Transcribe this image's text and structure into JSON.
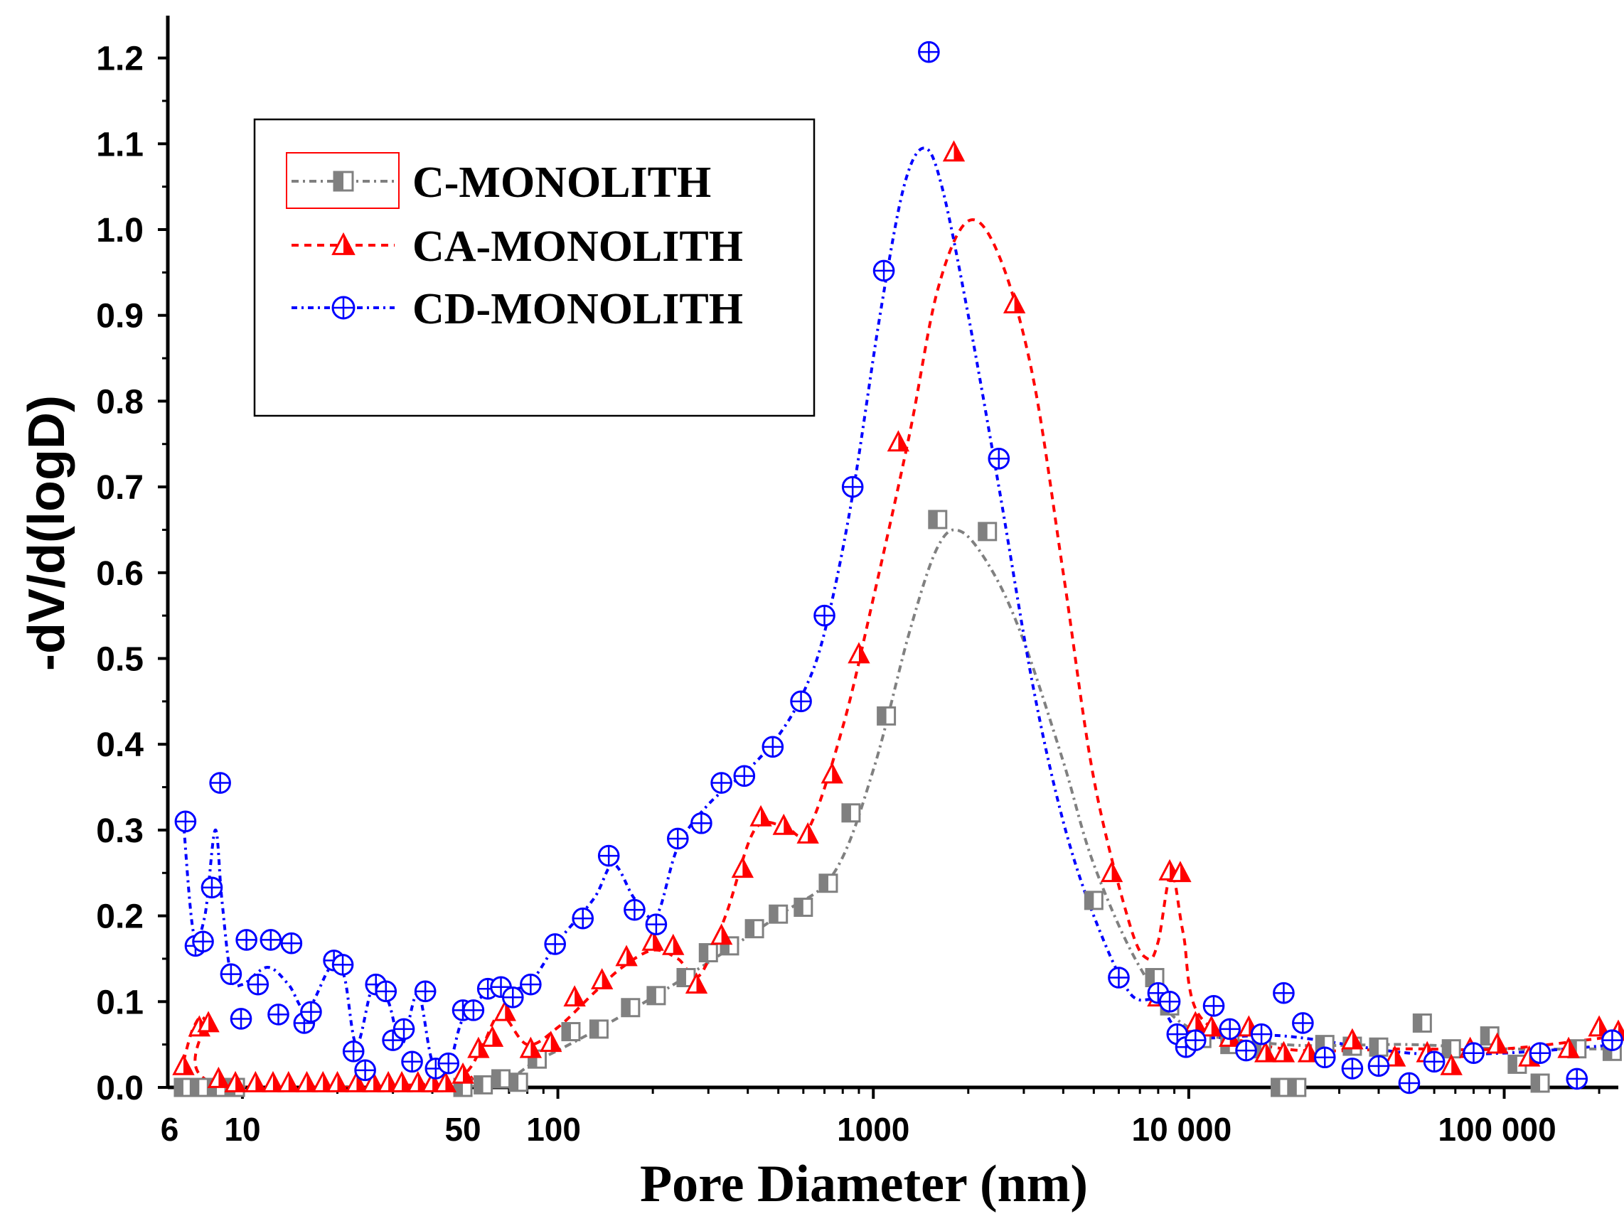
{
  "chart_data": {
    "type": "scatter",
    "title": "",
    "xlabel": "Pore Diameter (nm)",
    "ylabel": "-dV/d(logD)",
    "xscale": "log",
    "xlim": [
      5.8,
      230000
    ],
    "ylim": [
      0,
      1.25
    ],
    "yticks": [
      "0.0",
      "0.1",
      "0.2",
      "0.3",
      "0.4",
      "0.5",
      "0.6",
      "0.7",
      "0.8",
      "0.9",
      "1.0",
      "1.1",
      "1.2"
    ],
    "xticks": [
      {
        "value": 6,
        "label": "6"
      },
      {
        "value": 10,
        "label": "10"
      },
      {
        "value": 50,
        "label": "50"
      },
      {
        "value": 100,
        "label": "100"
      },
      {
        "value": 1000,
        "label": "1000"
      },
      {
        "value": 10000,
        "label": "10 000"
      },
      {
        "value": 100000,
        "label": "100 000"
      }
    ],
    "legend": {
      "position": "top-left",
      "entries": [
        "C-MONOLITH",
        "CA-MONOLITH",
        "CD-MONOLITH"
      ]
    },
    "series": [
      {
        "name": "C-MONOLITH",
        "color": "#808080",
        "marker": "half-square",
        "points": [
          [
            6.5,
            0.0
          ],
          [
            7.3,
            0.0
          ],
          [
            8.3,
            0.0
          ],
          [
            9.5,
            0.0
          ],
          [
            50,
            0.0
          ],
          [
            58,
            0.003
          ],
          [
            66,
            0.01
          ],
          [
            75,
            0.006
          ],
          [
            86,
            0.033
          ],
          [
            110,
            0.065
          ],
          [
            135,
            0.068
          ],
          [
            170,
            0.093
          ],
          [
            205,
            0.107
          ],
          [
            255,
            0.128
          ],
          [
            300,
            0.157
          ],
          [
            350,
            0.165
          ],
          [
            420,
            0.185
          ],
          [
            500,
            0.202
          ],
          [
            600,
            0.21
          ],
          [
            720,
            0.238
          ],
          [
            850,
            0.32
          ],
          [
            1100,
            0.433
          ],
          [
            1600,
            0.662
          ],
          [
            2300,
            0.648
          ],
          [
            5000,
            0.218
          ],
          [
            7800,
            0.128
          ],
          [
            8700,
            0.095
          ],
          [
            11000,
            0.057
          ],
          [
            13500,
            0.05
          ],
          [
            17000,
            0.045
          ],
          [
            19500,
            0.0
          ],
          [
            22000,
            0.0
          ],
          [
            27000,
            0.05
          ],
          [
            33000,
            0.048
          ],
          [
            40000,
            0.047
          ],
          [
            55000,
            0.075
          ],
          [
            68000,
            0.045
          ],
          [
            90000,
            0.06
          ],
          [
            110000,
            0.027
          ],
          [
            130000,
            0.005
          ],
          [
            170000,
            0.045
          ],
          [
            220000,
            0.042
          ]
        ],
        "curve": [
          [
            6.5,
            0.0
          ],
          [
            50,
            0.0
          ],
          [
            90,
            0.035
          ],
          [
            200,
            0.105
          ],
          [
            500,
            0.2
          ],
          [
            750,
            0.25
          ],
          [
            1000,
            0.37
          ],
          [
            1300,
            0.53
          ],
          [
            1600,
            0.63
          ],
          [
            1900,
            0.648
          ],
          [
            2400,
            0.6
          ],
          [
            3000,
            0.52
          ],
          [
            4000,
            0.38
          ],
          [
            5000,
            0.26
          ],
          [
            7000,
            0.14
          ],
          [
            10000,
            0.07
          ],
          [
            20000,
            0.05
          ],
          [
            50000,
            0.05
          ],
          [
            100000,
            0.045
          ],
          [
            230000,
            0.045
          ]
        ]
      },
      {
        "name": "CA-MONOLITH",
        "color": "#ff0000",
        "marker": "half-triangle",
        "points": [
          [
            6.5,
            0.025
          ],
          [
            7.3,
            0.07
          ],
          [
            7.8,
            0.075
          ],
          [
            8.4,
            0.01
          ],
          [
            9.5,
            0.005
          ],
          [
            11,
            0.005
          ],
          [
            12.5,
            0.005
          ],
          [
            14,
            0.005
          ],
          [
            16,
            0.005
          ],
          [
            18,
            0.005
          ],
          [
            20,
            0.005
          ],
          [
            23,
            0.005
          ],
          [
            26,
            0.005
          ],
          [
            29,
            0.005
          ],
          [
            32,
            0.005
          ],
          [
            36,
            0.005
          ],
          [
            40,
            0.005
          ],
          [
            44,
            0.005
          ],
          [
            50,
            0.015
          ],
          [
            56,
            0.045
          ],
          [
            62,
            0.058
          ],
          [
            68,
            0.088
          ],
          [
            82,
            0.045
          ],
          [
            95,
            0.052
          ],
          [
            113,
            0.105
          ],
          [
            138,
            0.125
          ],
          [
            165,
            0.152
          ],
          [
            200,
            0.17
          ],
          [
            232,
            0.165
          ],
          [
            275,
            0.12
          ],
          [
            330,
            0.177
          ],
          [
            385,
            0.255
          ],
          [
            440,
            0.315
          ],
          [
            520,
            0.305
          ],
          [
            620,
            0.295
          ],
          [
            740,
            0.365
          ],
          [
            900,
            0.505
          ],
          [
            1200,
            0.752
          ],
          [
            1800,
            1.09
          ],
          [
            2800,
            0.913
          ],
          [
            5700,
            0.25
          ],
          [
            8000,
            0.105
          ],
          [
            8700,
            0.252
          ],
          [
            9400,
            0.25
          ],
          [
            10500,
            0.075
          ],
          [
            11800,
            0.07
          ],
          [
            13500,
            0.058
          ],
          [
            15500,
            0.07
          ],
          [
            17500,
            0.04
          ],
          [
            20000,
            0.04
          ],
          [
            24000,
            0.04
          ],
          [
            33000,
            0.055
          ],
          [
            45000,
            0.035
          ],
          [
            57000,
            0.04
          ],
          [
            68000,
            0.025
          ],
          [
            78000,
            0.045
          ],
          [
            95000,
            0.05
          ],
          [
            120000,
            0.035
          ],
          [
            160000,
            0.045
          ],
          [
            200000,
            0.07
          ],
          [
            230000,
            0.065
          ]
        ],
        "curve": [
          [
            6.5,
            0.03
          ],
          [
            7.0,
            0.07
          ],
          [
            7.6,
            0.078
          ],
          [
            8.2,
            0.005
          ],
          [
            45,
            0.005
          ],
          [
            52,
            0.02
          ],
          [
            58,
            0.05
          ],
          [
            66,
            0.085
          ],
          [
            80,
            0.05
          ],
          [
            100,
            0.07
          ],
          [
            130,
            0.11
          ],
          [
            160,
            0.14
          ],
          [
            200,
            0.16
          ],
          [
            240,
            0.15
          ],
          [
            280,
            0.13
          ],
          [
            340,
            0.2
          ],
          [
            420,
            0.3
          ],
          [
            520,
            0.305
          ],
          [
            620,
            0.3
          ],
          [
            800,
            0.42
          ],
          [
            1000,
            0.57
          ],
          [
            1300,
            0.76
          ],
          [
            1600,
            0.93
          ],
          [
            2000,
            1.01
          ],
          [
            2500,
            0.97
          ],
          [
            3200,
            0.83
          ],
          [
            4000,
            0.6
          ],
          [
            5000,
            0.36
          ],
          [
            6500,
            0.19
          ],
          [
            7400,
            0.15
          ],
          [
            8000,
            0.17
          ],
          [
            8800,
            0.25
          ],
          [
            9600,
            0.18
          ],
          [
            11000,
            0.08
          ],
          [
            20000,
            0.045
          ],
          [
            50000,
            0.045
          ],
          [
            100000,
            0.045
          ],
          [
            230000,
            0.06
          ]
        ]
      },
      {
        "name": "CD-MONOLITH",
        "color": "#0000ff",
        "marker": "circle-plus",
        "points": [
          [
            6.6,
            0.31
          ],
          [
            7.1,
            0.165
          ],
          [
            7.5,
            0.17
          ],
          [
            8.0,
            0.233
          ],
          [
            8.5,
            0.355
          ],
          [
            9.2,
            0.132
          ],
          [
            9.9,
            0.08
          ],
          [
            10.3,
            0.172
          ],
          [
            11.2,
            0.12
          ],
          [
            12.3,
            0.172
          ],
          [
            13.0,
            0.085
          ],
          [
            14.3,
            0.168
          ],
          [
            15.7,
            0.075
          ],
          [
            16.5,
            0.088
          ],
          [
            19.5,
            0.148
          ],
          [
            20.8,
            0.143
          ],
          [
            22.5,
            0.042
          ],
          [
            24.5,
            0.02
          ],
          [
            26.5,
            0.12
          ],
          [
            28.5,
            0.112
          ],
          [
            30,
            0.055
          ],
          [
            32.5,
            0.068
          ],
          [
            34.5,
            0.03
          ],
          [
            38,
            0.112
          ],
          [
            41,
            0.022
          ],
          [
            45,
            0.028
          ],
          [
            50,
            0.09
          ],
          [
            54,
            0.09
          ],
          [
            60,
            0.115
          ],
          [
            66,
            0.117
          ],
          [
            72,
            0.105
          ],
          [
            82,
            0.12
          ],
          [
            98,
            0.167
          ],
          [
            120,
            0.197
          ],
          [
            145,
            0.27
          ],
          [
            175,
            0.207
          ],
          [
            205,
            0.19
          ],
          [
            240,
            0.29
          ],
          [
            285,
            0.308
          ],
          [
            330,
            0.355
          ],
          [
            390,
            0.363
          ],
          [
            480,
            0.397
          ],
          [
            590,
            0.45
          ],
          [
            700,
            0.55
          ],
          [
            860,
            0.7
          ],
          [
            1080,
            0.952
          ],
          [
            1500,
            1.207
          ],
          [
            2500,
            0.733
          ],
          [
            6000,
            0.128
          ],
          [
            8000,
            0.11
          ],
          [
            8700,
            0.1
          ],
          [
            9200,
            0.062
          ],
          [
            9800,
            0.047
          ],
          [
            10500,
            0.055
          ],
          [
            12000,
            0.095
          ],
          [
            13500,
            0.068
          ],
          [
            15200,
            0.043
          ],
          [
            17000,
            0.062
          ],
          [
            20000,
            0.11
          ],
          [
            23000,
            0.075
          ],
          [
            27000,
            0.035
          ],
          [
            33000,
            0.022
          ],
          [
            40000,
            0.025
          ],
          [
            50000,
            0.005
          ],
          [
            60000,
            0.03
          ],
          [
            80000,
            0.04
          ],
          [
            130000,
            0.04
          ],
          [
            170000,
            0.01
          ],
          [
            220000,
            0.055
          ]
        ],
        "curve": [
          [
            6.5,
            0.31
          ],
          [
            7.0,
            0.18
          ],
          [
            7.6,
            0.2
          ],
          [
            8.2,
            0.3
          ],
          [
            8.6,
            0.22
          ],
          [
            9.2,
            0.13
          ],
          [
            10,
            0.12
          ],
          [
            12,
            0.14
          ],
          [
            14,
            0.12
          ],
          [
            16,
            0.09
          ],
          [
            19,
            0.14
          ],
          [
            21,
            0.13
          ],
          [
            23,
            0.05
          ],
          [
            26,
            0.12
          ],
          [
            29,
            0.1
          ],
          [
            32,
            0.05
          ],
          [
            36,
            0.11
          ],
          [
            40,
            0.03
          ],
          [
            45,
            0.025
          ],
          [
            50,
            0.08
          ],
          [
            60,
            0.11
          ],
          [
            80,
            0.12
          ],
          [
            100,
            0.17
          ],
          [
            130,
            0.22
          ],
          [
            150,
            0.26
          ],
          [
            175,
            0.22
          ],
          [
            205,
            0.2
          ],
          [
            240,
            0.28
          ],
          [
            300,
            0.33
          ],
          [
            400,
            0.37
          ],
          [
            500,
            0.41
          ],
          [
            600,
            0.46
          ],
          [
            700,
            0.53
          ],
          [
            850,
            0.68
          ],
          [
            1050,
            0.9
          ],
          [
            1250,
            1.05
          ],
          [
            1450,
            1.095
          ],
          [
            1650,
            1.05
          ],
          [
            2000,
            0.9
          ],
          [
            2500,
            0.7
          ],
          [
            3200,
            0.47
          ],
          [
            4000,
            0.31
          ],
          [
            5000,
            0.2
          ],
          [
            6500,
            0.11
          ],
          [
            8000,
            0.1
          ],
          [
            10000,
            0.06
          ],
          [
            20000,
            0.06
          ],
          [
            50000,
            0.04
          ],
          [
            100000,
            0.04
          ],
          [
            230000,
            0.05
          ]
        ]
      }
    ]
  }
}
